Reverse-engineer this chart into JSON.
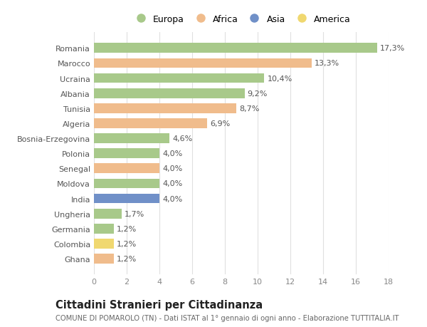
{
  "countries": [
    "Romania",
    "Marocco",
    "Ucraina",
    "Albania",
    "Tunisia",
    "Algeria",
    "Bosnia-Erzegovina",
    "Polonia",
    "Senegal",
    "Moldova",
    "India",
    "Ungheria",
    "Germania",
    "Colombia",
    "Ghana"
  ],
  "values": [
    17.3,
    13.3,
    10.4,
    9.2,
    8.7,
    6.9,
    4.6,
    4.0,
    4.0,
    4.0,
    4.0,
    1.7,
    1.2,
    1.2,
    1.2
  ],
  "labels": [
    "17,3%",
    "13,3%",
    "10,4%",
    "9,2%",
    "8,7%",
    "6,9%",
    "4,6%",
    "4,0%",
    "4,0%",
    "4,0%",
    "4,0%",
    "1,7%",
    "1,2%",
    "1,2%",
    "1,2%"
  ],
  "colors": [
    "#a8c98a",
    "#f0bc8c",
    "#a8c98a",
    "#a8c98a",
    "#f0bc8c",
    "#f0bc8c",
    "#a8c98a",
    "#a8c98a",
    "#f0bc8c",
    "#a8c98a",
    "#7090c8",
    "#a8c98a",
    "#a8c98a",
    "#f0d870",
    "#f0bc8c"
  ],
  "legend": [
    {
      "label": "Europa",
      "color": "#a8c98a"
    },
    {
      "label": "Africa",
      "color": "#f0bc8c"
    },
    {
      "label": "Asia",
      "color": "#7090c8"
    },
    {
      "label": "America",
      "color": "#f0d870"
    }
  ],
  "title": "Cittadini Stranieri per Cittadinanza",
  "subtitle": "COMUNE DI POMAROLO (TN) - Dati ISTAT al 1° gennaio di ogni anno - Elaborazione TUTTITALIA.IT",
  "xlim": [
    0,
    18
  ],
  "xticks": [
    0,
    2,
    4,
    6,
    8,
    10,
    12,
    14,
    16,
    18
  ],
  "bg_color": "#ffffff",
  "grid_color": "#e0e0e0",
  "bar_height": 0.65,
  "label_fontsize": 8.0,
  "tick_fontsize": 8.0,
  "ytick_fontsize": 8.0,
  "title_fontsize": 10.5,
  "subtitle_fontsize": 7.2,
  "legend_fontsize": 9.0
}
